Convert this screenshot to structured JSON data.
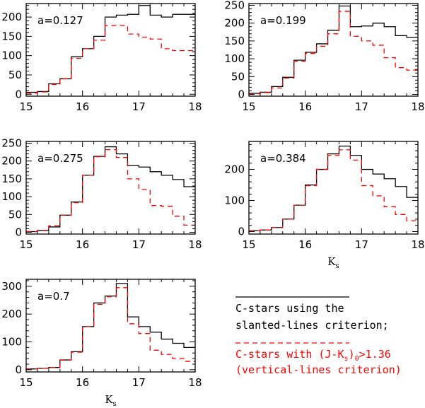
{
  "colors": {
    "slanted": "#000000",
    "vertical": "#ff0000",
    "axis": "#000000"
  },
  "legend": {
    "slanted": {
      "line1": "C-stars using the",
      "line2": "slanted-lines criterion;"
    },
    "vertical": {
      "line1_a": "C-stars with (J-K",
      "sub_s": "s",
      "line1_b": ")",
      "sub_0": "0",
      "line1_c": ">1.36",
      "line2": "(vertical-lines criterion)"
    }
  },
  "xlabel": {
    "main": "K",
    "sub": "s"
  },
  "chart_data": [
    {
      "type": "histogram",
      "annotation": "a=0.127",
      "x_edges": [
        15.0,
        15.2,
        15.4,
        15.6,
        15.8,
        16.0,
        16.2,
        16.4,
        16.6,
        16.8,
        17.0,
        17.2,
        17.4,
        17.6,
        17.8,
        18.0
      ],
      "xlim": [
        15,
        18
      ],
      "ylim": [
        -5,
        235
      ],
      "xticks": [
        15,
        16,
        17,
        18
      ],
      "yticks": [
        0,
        50,
        100,
        150,
        200
      ],
      "show_xlabel": false,
      "series": [
        {
          "criterion": "slanted",
          "style": "solid",
          "values": [
            5,
            7,
            27,
            40,
            97,
            118,
            150,
            200,
            205,
            207,
            230,
            205,
            200,
            207,
            207
          ]
        },
        {
          "criterion": "vertical",
          "style": "dashed",
          "values": [
            3,
            6,
            25,
            40,
            93,
            118,
            140,
            178,
            178,
            156,
            148,
            143,
            118,
            113,
            113
          ]
        }
      ]
    },
    {
      "type": "histogram",
      "annotation": "a=0.199",
      "x_edges": [
        15.0,
        15.2,
        15.4,
        15.6,
        15.8,
        16.0,
        16.2,
        16.4,
        16.6,
        16.8,
        17.0,
        17.2,
        17.4,
        17.6,
        17.8,
        18.0
      ],
      "xlim": [
        15,
        18
      ],
      "ylim": [
        -5,
        255
      ],
      "xticks": [
        15,
        16,
        17,
        18
      ],
      "yticks": [
        0,
        50,
        100,
        150,
        200,
        250
      ],
      "show_xlabel": false,
      "series": [
        {
          "criterion": "slanted",
          "style": "solid",
          "values": [
            3,
            6,
            22,
            48,
            96,
            118,
            142,
            180,
            248,
            190,
            192,
            200,
            190,
            165,
            160
          ]
        },
        {
          "criterion": "vertical",
          "style": "dashed",
          "values": [
            2,
            5,
            18,
            46,
            93,
            115,
            135,
            170,
            233,
            163,
            150,
            138,
            103,
            75,
            68
          ]
        }
      ]
    },
    {
      "type": "histogram",
      "annotation": "a=0.275",
      "x_edges": [
        15.0,
        15.2,
        15.4,
        15.6,
        15.8,
        16.0,
        16.2,
        16.4,
        16.6,
        16.8,
        17.0,
        17.2,
        17.4,
        17.6,
        17.8,
        18.0
      ],
      "xlim": [
        15,
        18
      ],
      "ylim": [
        -5,
        255
      ],
      "xticks": [
        15,
        16,
        17,
        18
      ],
      "yticks": [
        0,
        50,
        100,
        150,
        200,
        250
      ],
      "show_xlabel": false,
      "series": [
        {
          "criterion": "slanted",
          "style": "solid",
          "values": [
            2,
            5,
            15,
            48,
            85,
            160,
            213,
            240,
            220,
            187,
            183,
            170,
            160,
            148,
            128
          ]
        },
        {
          "criterion": "vertical",
          "style": "dashed",
          "values": [
            2,
            5,
            18,
            48,
            83,
            160,
            212,
            232,
            210,
            150,
            120,
            75,
            73,
            45,
            20
          ]
        }
      ]
    },
    {
      "type": "histogram",
      "annotation": "a=0.384",
      "x_edges": [
        15.0,
        15.2,
        15.4,
        15.6,
        15.8,
        16.0,
        16.2,
        16.4,
        16.6,
        16.8,
        17.0,
        17.2,
        17.4,
        17.6,
        17.8,
        18.0
      ],
      "xlim": [
        15,
        18
      ],
      "ylim": [
        -8,
        290
      ],
      "xticks": [
        15,
        16,
        17,
        18
      ],
      "yticks": [
        0,
        100,
        200
      ],
      "show_xlabel": true,
      "series": [
        {
          "criterion": "slanted",
          "style": "solid",
          "values": [
            3,
            5,
            13,
            40,
            85,
            150,
            200,
            250,
            275,
            245,
            200,
            185,
            170,
            145,
            110
          ]
        },
        {
          "criterion": "vertical",
          "style": "dashed",
          "values": [
            3,
            5,
            13,
            40,
            85,
            148,
            200,
            245,
            263,
            230,
            148,
            115,
            80,
            55,
            35
          ]
        }
      ]
    },
    {
      "type": "histogram",
      "annotation": "a=0.7",
      "x_edges": [
        15.0,
        15.2,
        15.4,
        15.6,
        15.8,
        16.0,
        16.2,
        16.4,
        16.6,
        16.8,
        17.0,
        17.2,
        17.4,
        17.6,
        17.8,
        18.0
      ],
      "xlim": [
        15,
        18
      ],
      "ylim": [
        -8,
        325
      ],
      "xticks": [
        15,
        16,
        17,
        18
      ],
      "yticks": [
        0,
        100,
        200,
        300
      ],
      "show_xlabel": true,
      "series": [
        {
          "criterion": "slanted",
          "style": "solid",
          "values": [
            3,
            5,
            8,
            35,
            65,
            155,
            240,
            265,
            310,
            190,
            155,
            135,
            110,
            95,
            80
          ]
        },
        {
          "criterion": "vertical",
          "style": "dashed",
          "values": [
            3,
            5,
            8,
            35,
            63,
            155,
            235,
            262,
            295,
            165,
            130,
            70,
            55,
            40,
            30
          ]
        }
      ]
    }
  ]
}
